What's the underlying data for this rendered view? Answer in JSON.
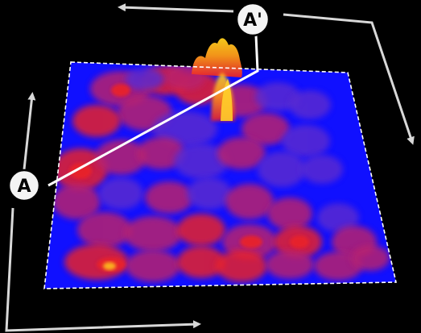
{
  "markers": {
    "start": "A",
    "end": "A'"
  },
  "colors": {
    "background": "#000000",
    "surface_base": "#1010ff",
    "surface_low": "#5a2bd0",
    "surface_mid": "#b8206e",
    "surface_high": "#e8202a",
    "surface_peak": "#ffd21c",
    "frame_dash": "#ffffff",
    "arrows": "#d8d8d8",
    "profile_line": "#ffffff"
  }
}
